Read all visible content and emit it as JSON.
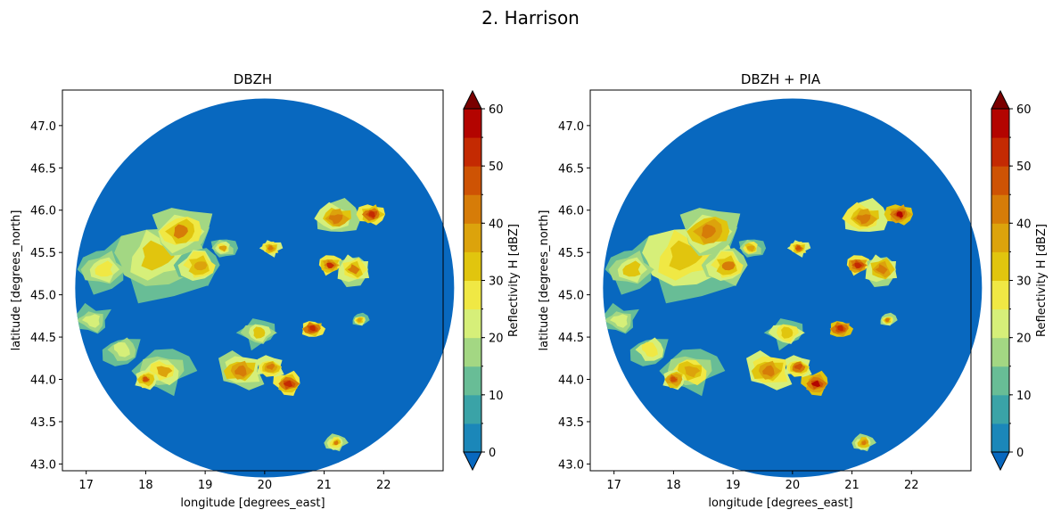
{
  "figure": {
    "suptitle": "2. Harrison"
  },
  "colors": {
    "background": "#0868bf",
    "levels": [
      "#0868bf",
      "#1b87b9",
      "#3aa3a7",
      "#68bd96",
      "#a3d783",
      "#d6ef79",
      "#f0e844",
      "#e1c50e",
      "#dca30c",
      "#d67c08",
      "#ce5304",
      "#c42a02",
      "#b30400",
      "#7a0000"
    ]
  },
  "chart_data": [
    {
      "type": "heatmap",
      "title": "DBZH",
      "xlabel": "longitude [degrees_east]",
      "ylabel": "latitude [degrees_north]",
      "xticks": [
        "17",
        "18",
        "19",
        "20",
        "21",
        "22"
      ],
      "yticks": [
        "43.0",
        "43.5",
        "44.0",
        "44.5",
        "45.0",
        "45.5",
        "46.0",
        "46.5",
        "47.0"
      ],
      "xlim": [
        16.6,
        23.0
      ],
      "ylim": [
        42.92,
        47.42
      ],
      "radar_center": [
        20.0,
        45.08
      ],
      "colorbar": {
        "label": "Reflectivity H [dBZ]",
        "ticks": [
          "0",
          "10",
          "20",
          "30",
          "40",
          "50",
          "60"
        ],
        "range": [
          0,
          60
        ],
        "step": 5,
        "extend": "both"
      },
      "cells": [
        {
          "lon": 18.2,
          "lat": 45.45,
          "dbz": 30,
          "r": 0.95
        },
        {
          "lon": 18.6,
          "lat": 45.75,
          "dbz": 40,
          "r": 0.45
        },
        {
          "lon": 18.9,
          "lat": 45.35,
          "dbz": 38,
          "r": 0.35
        },
        {
          "lon": 17.3,
          "lat": 45.3,
          "dbz": 28,
          "r": 0.5
        },
        {
          "lon": 17.1,
          "lat": 44.7,
          "dbz": 22,
          "r": 0.45
        },
        {
          "lon": 17.6,
          "lat": 44.35,
          "dbz": 24,
          "r": 0.45
        },
        {
          "lon": 18.3,
          "lat": 44.1,
          "dbz": 35,
          "r": 0.4
        },
        {
          "lon": 18.0,
          "lat": 44.0,
          "dbz": 45,
          "r": 0.18
        },
        {
          "lon": 19.6,
          "lat": 44.1,
          "dbz": 42,
          "r": 0.35
        },
        {
          "lon": 20.4,
          "lat": 43.95,
          "dbz": 52,
          "r": 0.22
        },
        {
          "lon": 20.1,
          "lat": 44.15,
          "dbz": 44,
          "r": 0.2
        },
        {
          "lon": 20.8,
          "lat": 44.6,
          "dbz": 52,
          "r": 0.18
        },
        {
          "lon": 21.1,
          "lat": 45.35,
          "dbz": 50,
          "r": 0.18
        },
        {
          "lon": 21.5,
          "lat": 45.3,
          "dbz": 40,
          "r": 0.3
        },
        {
          "lon": 21.2,
          "lat": 45.9,
          "dbz": 42,
          "r": 0.35
        },
        {
          "lon": 21.8,
          "lat": 45.95,
          "dbz": 52,
          "r": 0.2
        },
        {
          "lon": 21.6,
          "lat": 44.7,
          "dbz": 38,
          "r": 0.12
        },
        {
          "lon": 21.2,
          "lat": 43.25,
          "dbz": 40,
          "r": 0.15
        },
        {
          "lon": 20.1,
          "lat": 45.55,
          "dbz": 44,
          "r": 0.15
        },
        {
          "lon": 19.3,
          "lat": 45.55,
          "dbz": 35,
          "r": 0.2
        },
        {
          "lon": 19.9,
          "lat": 44.55,
          "dbz": 30,
          "r": 0.35
        }
      ]
    },
    {
      "type": "heatmap",
      "title": "DBZH + PIA",
      "xlabel": "longitude [degrees_east]",
      "ylabel": "latitude [degrees_north]",
      "xticks": [
        "17",
        "18",
        "19",
        "20",
        "21",
        "22"
      ],
      "yticks": [
        "43.0",
        "43.5",
        "44.0",
        "44.5",
        "45.0",
        "45.5",
        "46.0",
        "46.5",
        "47.0"
      ],
      "xlim": [
        16.6,
        23.0
      ],
      "ylim": [
        42.92,
        47.42
      ],
      "radar_center": [
        20.0,
        45.08
      ],
      "colorbar": {
        "label": "Reflectivity H [dBZ]",
        "ticks": [
          "0",
          "10",
          "20",
          "30",
          "40",
          "50",
          "60"
        ],
        "range": [
          0,
          60
        ],
        "step": 5,
        "extend": "both"
      },
      "cells": [
        {
          "lon": 18.2,
          "lat": 45.45,
          "dbz": 32,
          "r": 0.95
        },
        {
          "lon": 18.6,
          "lat": 45.75,
          "dbz": 42,
          "r": 0.45
        },
        {
          "lon": 18.9,
          "lat": 45.35,
          "dbz": 40,
          "r": 0.35
        },
        {
          "lon": 17.3,
          "lat": 45.3,
          "dbz": 30,
          "r": 0.5
        },
        {
          "lon": 17.1,
          "lat": 44.7,
          "dbz": 24,
          "r": 0.45
        },
        {
          "lon": 17.6,
          "lat": 44.35,
          "dbz": 26,
          "r": 0.45
        },
        {
          "lon": 18.3,
          "lat": 44.1,
          "dbz": 37,
          "r": 0.4
        },
        {
          "lon": 18.0,
          "lat": 44.0,
          "dbz": 48,
          "r": 0.18
        },
        {
          "lon": 19.6,
          "lat": 44.1,
          "dbz": 44,
          "r": 0.35
        },
        {
          "lon": 20.4,
          "lat": 43.95,
          "dbz": 55,
          "r": 0.22
        },
        {
          "lon": 20.1,
          "lat": 44.15,
          "dbz": 46,
          "r": 0.2
        },
        {
          "lon": 20.8,
          "lat": 44.6,
          "dbz": 54,
          "r": 0.18
        },
        {
          "lon": 21.1,
          "lat": 45.35,
          "dbz": 53,
          "r": 0.18
        },
        {
          "lon": 21.5,
          "lat": 45.3,
          "dbz": 42,
          "r": 0.3
        },
        {
          "lon": 21.2,
          "lat": 45.9,
          "dbz": 44,
          "r": 0.35
        },
        {
          "lon": 21.8,
          "lat": 45.95,
          "dbz": 55,
          "r": 0.2
        },
        {
          "lon": 21.6,
          "lat": 44.7,
          "dbz": 40,
          "r": 0.12
        },
        {
          "lon": 21.2,
          "lat": 43.25,
          "dbz": 42,
          "r": 0.15
        },
        {
          "lon": 20.1,
          "lat": 45.55,
          "dbz": 46,
          "r": 0.15
        },
        {
          "lon": 19.3,
          "lat": 45.55,
          "dbz": 37,
          "r": 0.2
        },
        {
          "lon": 19.9,
          "lat": 44.55,
          "dbz": 32,
          "r": 0.35
        }
      ]
    }
  ]
}
